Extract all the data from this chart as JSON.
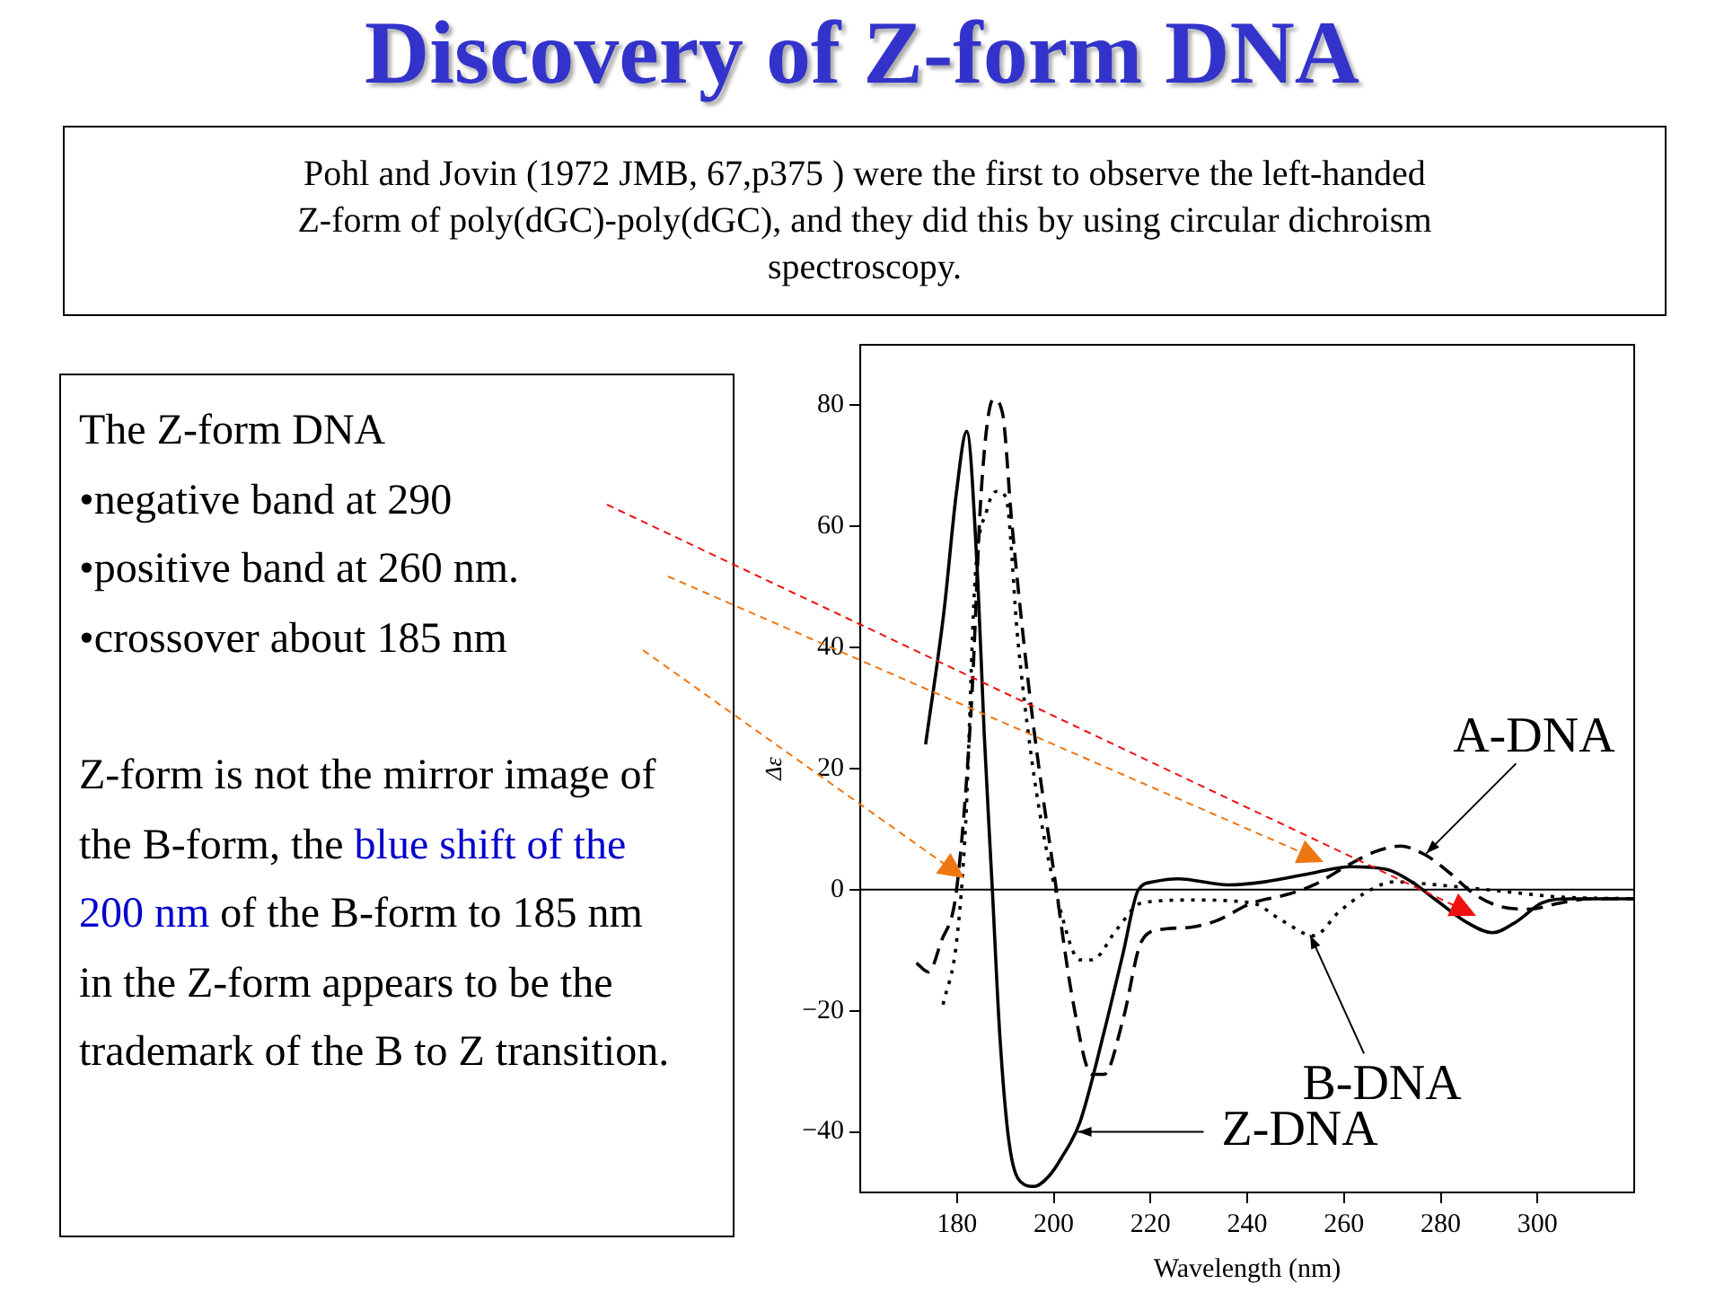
{
  "chart_data": {
    "type": "line",
    "title": "Discovery of Z-form DNA",
    "subtitle": "Pohl and Jovin (1972 JMB, 67,p375 ) were the first to observe the left-handed Z-form of poly(dGC)-poly(dGC), and they did this by using circular dichroism spectroscopy.",
    "xlabel": "Wavelength (nm)",
    "ylabel": "Δε",
    "xlim": [
      160,
      320
    ],
    "ylim": [
      -50,
      90
    ],
    "xticks": [
      180,
      200,
      220,
      240,
      260,
      280,
      300
    ],
    "yticks": [
      -40,
      -20,
      0,
      20,
      40,
      60,
      80
    ],
    "grid": false,
    "legend": false,
    "marker": "none",
    "ref_lines": [
      {
        "axis": "y",
        "value": 0,
        "color": "#000000"
      }
    ],
    "series": [
      {
        "color": "#000000",
        "line_style": "solid",
        "x": [
          173.5,
          177.3,
          179.9,
          182,
          184.3,
          185.6,
          187.3,
          188.8,
          190.7,
          193.2,
          196,
          199,
          201.5,
          205.4,
          210.4,
          214.3,
          217.5,
          220.6,
          225.7,
          236,
          243.6,
          253.8,
          261.4,
          269,
          274,
          279,
          285.6,
          290.7,
          295.8,
          300.9,
          307,
          320
        ],
        "values": [
          24,
          46,
          65.8,
          75.7,
          50.9,
          26,
          0,
          -23.5,
          -41.4,
          -48.3,
          -49,
          -47.3,
          -44.4,
          -38.4,
          -23.5,
          -10.6,
          0,
          1.3,
          1.8,
          0.8,
          1.3,
          2.8,
          3.8,
          3.3,
          1.3,
          -1.7,
          -5.5,
          -7.1,
          -5.2,
          -2.2,
          -1.5,
          -1.5
        ]
      },
      {
        "color": "#000000",
        "line_style": "dashed",
        "x": [
          171.6,
          174.1,
          176.7,
          179.9,
          183,
          185,
          187.5,
          189.4,
          191.3,
          195.2,
          200.3,
          204,
          207.9,
          210.4,
          214.3,
          218.1,
          222,
          228.3,
          233.4,
          241,
          248.7,
          253.8,
          261.4,
          266.5,
          271.6,
          276.7,
          281.8,
          286.9,
          292,
          298.3,
          304.7,
          311,
          320
        ],
        "values": [
          -12.1,
          -13.6,
          -8.6,
          0,
          31,
          65.8,
          81,
          78.7,
          60.8,
          31,
          1.3,
          -18.6,
          -30.5,
          -30.5,
          -21.5,
          -8.6,
          -6.6,
          -6.2,
          -5.2,
          -2.2,
          -0.7,
          0.8,
          4.3,
          6.3,
          7.2,
          5.8,
          2.8,
          -0.7,
          -2.7,
          -3.2,
          -2.2,
          -1.5,
          -1.5
        ]
      },
      {
        "color": "#000000",
        "line_style": "dotted",
        "x": [
          177.1,
          179.9,
          181.8,
          183.7,
          186.2,
          188.2,
          190.1,
          192.6,
          196.4,
          201.5,
          205.4,
          207.9,
          213,
          218.1,
          228.3,
          241,
          247.4,
          253.8,
          258.9,
          264,
          270.3,
          279.2,
          292,
          304.7,
          320
        ],
        "values": [
          -19,
          -8.6,
          11.2,
          50.9,
          62.8,
          65.8,
          64.8,
          41,
          16.2,
          -3.7,
          -11.6,
          -11.6,
          -6.6,
          -2.2,
          -1.7,
          -2.2,
          -5.2,
          -7.6,
          -3.7,
          -0.7,
          1.3,
          0.8,
          -0.2,
          -1.2,
          -1.5
        ]
      }
    ],
    "annotations": [
      "The Z-form DNA",
      "•negative band at 290",
      "•positive band at 260 nm.",
      "•crossover about 185 nm",
      "Z-form is not the mirror image of the B-form, the",
      "blue shift of the 200 nm",
      "of the B-form to 185 nm in the Z-form appears to be the trademark of the B to Z transition.",
      {
        "text": "A-DNA",
        "x": 277,
        "y": 6
      },
      {
        "text": "B-DNA",
        "x": 253,
        "y": -7.5
      },
      {
        "text": "Z-DNA",
        "x": 205,
        "y": -40
      }
    ]
  }
}
